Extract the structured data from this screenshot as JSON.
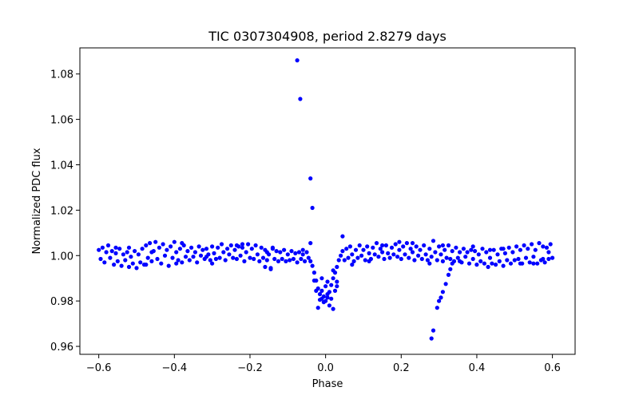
{
  "chart_data": {
    "type": "scatter",
    "title": "TIC 0307304908, period 2.8279 days",
    "xlabel": "Phase",
    "ylabel": "Normalized PDC flux",
    "xlim": [
      -0.65,
      0.66
    ],
    "ylim": [
      0.9565,
      1.0915
    ],
    "grid": false,
    "marker_color": "#0000ff",
    "xticks": [
      -0.6,
      -0.4,
      -0.2,
      0.0,
      0.2,
      0.4,
      0.6
    ],
    "xtick_labels": [
      "−0.6",
      "−0.4",
      "−0.2",
      "0.0",
      "0.2",
      "0.4",
      "0.6"
    ],
    "yticks": [
      0.96,
      0.98,
      1.0,
      1.02,
      1.04,
      1.06,
      1.08
    ],
    "ytick_labels": [
      "0.96",
      "0.98",
      "1.00",
      "1.02",
      "1.04",
      "1.06",
      "1.08"
    ],
    "series": [
      {
        "name": "flux",
        "points": [
          [
            -0.6,
            1.0025
          ],
          [
            -0.595,
            0.9985
          ],
          [
            -0.59,
            1.0035
          ],
          [
            -0.585,
            0.997
          ],
          [
            -0.58,
            1.0015
          ],
          [
            -0.575,
            1.0045
          ],
          [
            -0.57,
            0.999
          ],
          [
            -0.565,
            1.002
          ],
          [
            -0.56,
            0.996
          ],
          [
            -0.555,
            1.001
          ],
          [
            -0.55,
            0.9975
          ],
          [
            -0.545,
            1.003
          ],
          [
            -0.54,
            0.9955
          ],
          [
            -0.535,
            1.0005
          ],
          [
            -0.53,
            0.998
          ],
          [
            -0.525,
            1.0015
          ],
          [
            -0.52,
            0.995
          ],
          [
            -0.515,
            0.9995
          ],
          [
            -0.51,
            0.9965
          ],
          [
            -0.505,
            1.002
          ],
          [
            -0.5,
            0.9945
          ],
          [
            -0.495,
            1.0005
          ],
          [
            -0.49,
            0.997
          ],
          [
            -0.485,
            1.003
          ],
          [
            -0.48,
            0.996
          ],
          [
            -0.475,
            1.0045
          ],
          [
            -0.47,
            0.999
          ],
          [
            -0.465,
            1.0055
          ],
          [
            -0.46,
            0.9975
          ],
          [
            -0.455,
            1.002
          ],
          [
            -0.45,
            1.006
          ],
          [
            -0.445,
            0.9985
          ],
          [
            -0.44,
            1.0035
          ],
          [
            -0.435,
            0.9965
          ],
          [
            -0.43,
            1.005
          ],
          [
            -0.425,
            1.0
          ],
          [
            -0.42,
            1.0025
          ],
          [
            -0.415,
            0.9955
          ],
          [
            -0.41,
            1.004
          ],
          [
            -0.405,
            0.999
          ],
          [
            -0.4,
            1.006
          ],
          [
            -0.395,
            1.0015
          ],
          [
            -0.39,
            0.998
          ],
          [
            -0.385,
            1.003
          ],
          [
            -0.38,
            0.997
          ],
          [
            -0.375,
            1.0045
          ],
          [
            -0.37,
            0.9995
          ],
          [
            -0.365,
            1.002
          ],
          [
            -0.36,
            0.998
          ],
          [
            -0.355,
            1.0035
          ],
          [
            -0.35,
            0.9995
          ],
          [
            -0.345,
            1.0015
          ],
          [
            -0.34,
            0.997
          ],
          [
            -0.335,
            1.004
          ],
          [
            -0.33,
            1.0
          ],
          [
            -0.325,
            1.0025
          ],
          [
            -0.32,
            0.9985
          ],
          [
            -0.315,
            1.003
          ],
          [
            -0.31,
            1.0005
          ],
          [
            -0.305,
            0.998
          ],
          [
            -0.3,
            1.004
          ],
          [
            -0.295,
            1.001
          ],
          [
            -0.29,
            0.9985
          ],
          [
            -0.285,
            1.0035
          ],
          [
            -0.28,
            0.999
          ],
          [
            -0.275,
            1.005
          ],
          [
            -0.27,
            1.0015
          ],
          [
            -0.265,
            0.998
          ],
          [
            -0.26,
            1.003
          ],
          [
            -0.255,
            1.0005
          ],
          [
            -0.25,
            1.0045
          ],
          [
            -0.245,
            0.999
          ],
          [
            -0.24,
            1.0025
          ],
          [
            -0.235,
            0.9985
          ],
          [
            -0.23,
            1.004
          ],
          [
            -0.225,
            1.0
          ],
          [
            -0.22,
            1.0035
          ],
          [
            -0.215,
            0.9975
          ],
          [
            -0.21,
            1.0015
          ],
          [
            -0.205,
            1.005
          ],
          [
            -0.2,
            0.999
          ],
          [
            -0.195,
            1.003
          ],
          [
            -0.19,
            0.9985
          ],
          [
            -0.185,
            1.0045
          ],
          [
            -0.18,
            1.0005
          ],
          [
            -0.175,
            0.9975
          ],
          [
            -0.17,
            1.0035
          ],
          [
            -0.165,
            0.999
          ],
          [
            -0.16,
            1.0025
          ],
          [
            -0.155,
            0.998
          ],
          [
            -0.15,
            1.0005
          ],
          [
            -0.145,
            0.9945
          ],
          [
            -0.14,
            1.003
          ],
          [
            -0.135,
            0.9985
          ],
          [
            -0.13,
            1.002
          ],
          [
            -0.125,
            0.9975
          ],
          [
            -0.12,
            1.0015
          ],
          [
            -0.115,
            0.9985
          ],
          [
            -0.11,
            1.0025
          ],
          [
            -0.105,
            0.9975
          ],
          [
            -0.1,
            1.0005
          ],
          [
            -0.095,
            0.998
          ],
          [
            -0.09,
            1.002
          ],
          [
            -0.085,
            0.9985
          ],
          [
            -0.08,
            1.001
          ],
          [
            -0.075,
            0.997
          ],
          [
            -0.07,
            1.0015
          ],
          [
            -0.065,
            0.9985
          ],
          [
            -0.06,
            1.0005
          ],
          [
            -0.055,
            0.9975
          ],
          [
            -0.05,
            1.0015
          ],
          [
            -0.045,
            0.999
          ],
          [
            -0.04,
            0.9975
          ],
          [
            -0.035,
            0.9955
          ],
          [
            -0.03,
            0.9925
          ],
          [
            -0.025,
            0.989
          ],
          [
            -0.02,
            0.9855
          ],
          [
            -0.015,
            0.983
          ],
          [
            -0.01,
            0.981
          ],
          [
            -0.005,
            0.9795
          ],
          [
            0.0,
            0.98
          ],
          [
            0.005,
            0.9815
          ],
          [
            0.01,
            0.984
          ],
          [
            0.015,
            0.987
          ],
          [
            0.02,
            0.99
          ],
          [
            0.025,
            0.9925
          ],
          [
            0.03,
            0.995
          ],
          [
            0.035,
            0.998
          ],
          [
            0.04,
            1.0
          ],
          [
            0.045,
            1.002
          ],
          [
            0.05,
            0.998
          ],
          [
            0.055,
            1.003
          ],
          [
            0.06,
            0.999
          ],
          [
            0.065,
            1.004
          ],
          [
            0.07,
            1.0005
          ],
          [
            0.075,
            0.9975
          ],
          [
            0.08,
            1.0025
          ],
          [
            0.085,
            0.999
          ],
          [
            0.09,
            1.0045
          ],
          [
            0.095,
            1.0
          ],
          [
            0.1,
            1.0025
          ],
          [
            0.105,
            0.998
          ],
          [
            0.11,
            1.004
          ],
          [
            0.115,
            1.001
          ],
          [
            0.12,
            0.9985
          ],
          [
            0.125,
            1.0035
          ],
          [
            0.13,
            1.0005
          ],
          [
            0.135,
            1.0055
          ],
          [
            0.14,
            0.9995
          ],
          [
            0.145,
            1.003
          ],
          [
            0.15,
            1.0015
          ],
          [
            0.155,
            0.9985
          ],
          [
            0.16,
            1.0045
          ],
          [
            0.165,
            1.001
          ],
          [
            0.17,
            0.999
          ],
          [
            0.175,
            1.0035
          ],
          [
            0.18,
            1.0005
          ],
          [
            0.185,
            1.005
          ],
          [
            0.19,
            0.9995
          ],
          [
            0.195,
            1.0025
          ],
          [
            0.2,
            0.9985
          ],
          [
            0.205,
            1.004
          ],
          [
            0.21,
            1.0005
          ],
          [
            0.215,
            1.0055
          ],
          [
            0.22,
            0.999
          ],
          [
            0.225,
            1.003
          ],
          [
            0.23,
            1.0015
          ],
          [
            0.235,
            0.998
          ],
          [
            0.24,
            1.004
          ],
          [
            0.245,
            1.0
          ],
          [
            0.25,
            1.0025
          ],
          [
            0.255,
            0.9985
          ],
          [
            0.26,
            1.0045
          ],
          [
            0.265,
            1.0005
          ],
          [
            0.27,
            0.998
          ],
          [
            0.275,
            1.003
          ],
          [
            0.28,
            0.9995
          ],
          [
            0.285,
            1.0065
          ],
          [
            0.29,
            1.0015
          ],
          [
            0.295,
            0.998
          ],
          [
            0.3,
            1.004
          ],
          [
            0.305,
            1.0005
          ],
          [
            0.31,
            0.9975
          ],
          [
            0.315,
            1.0025
          ],
          [
            0.32,
            0.999
          ],
          [
            0.325,
            1.0045
          ],
          [
            0.33,
            0.9985
          ],
          [
            0.335,
            1.002
          ],
          [
            0.34,
            0.9975
          ],
          [
            0.345,
            1.0035
          ],
          [
            0.35,
            0.999
          ],
          [
            0.355,
            1.0015
          ],
          [
            0.36,
            0.997
          ],
          [
            0.365,
            1.003
          ],
          [
            0.37,
            0.9995
          ],
          [
            0.375,
            1.0015
          ],
          [
            0.38,
            0.9965
          ],
          [
            0.385,
            1.0025
          ],
          [
            0.39,
            0.9985
          ],
          [
            0.395,
            1.002
          ],
          [
            0.4,
            0.996
          ],
          [
            0.405,
            1.0005
          ],
          [
            0.41,
            0.9975
          ],
          [
            0.415,
            1.003
          ],
          [
            0.42,
            0.9965
          ],
          [
            0.425,
            1.0015
          ],
          [
            0.43,
            0.995
          ],
          [
            0.435,
            0.999
          ],
          [
            0.44,
            0.9965
          ],
          [
            0.445,
            1.0025
          ],
          [
            0.45,
            0.996
          ],
          [
            0.455,
            1.0005
          ],
          [
            0.46,
            0.9975
          ],
          [
            0.465,
            1.003
          ],
          [
            0.47,
            0.9955
          ],
          [
            0.475,
            1.001
          ],
          [
            0.48,
            0.998
          ],
          [
            0.485,
            1.0035
          ],
          [
            0.49,
            0.9965
          ],
          [
            0.495,
            1.0015
          ],
          [
            0.5,
            0.998
          ],
          [
            0.505,
            1.004
          ],
          [
            0.51,
            0.9985
          ],
          [
            0.515,
            1.0025
          ],
          [
            0.52,
            0.9965
          ],
          [
            0.525,
            1.0045
          ],
          [
            0.53,
            0.999
          ],
          [
            0.535,
            1.003
          ],
          [
            0.54,
            0.997
          ],
          [
            0.545,
            1.005
          ],
          [
            0.55,
            0.9995
          ],
          [
            0.555,
            1.0025
          ],
          [
            0.56,
            0.9965
          ],
          [
            0.565,
            1.0055
          ],
          [
            0.57,
            0.998
          ],
          [
            0.575,
            1.004
          ],
          [
            0.58,
            0.997
          ],
          [
            0.585,
            1.0035
          ],
          [
            0.59,
            0.9985
          ],
          [
            0.595,
            1.005
          ],
          [
            0.6,
            0.999
          ],
          [
            -0.52,
            1.0035
          ],
          [
            -0.46,
            1.0015
          ],
          [
            -0.38,
            1.0055
          ],
          [
            -0.3,
            0.9965
          ],
          [
            -0.22,
            1.005
          ],
          [
            -0.14,
            1.0035
          ],
          [
            -0.06,
            1.0025
          ],
          [
            0.07,
            0.996
          ],
          [
            0.15,
            1.0045
          ],
          [
            0.23,
            1.0055
          ],
          [
            0.31,
            1.0045
          ],
          [
            0.39,
            1.004
          ],
          [
            0.47,
            1.003
          ],
          [
            0.55,
            0.9965
          ],
          [
            0.59,
            1.0015
          ],
          [
            -0.555,
            1.0035
          ],
          [
            -0.475,
            0.996
          ],
          [
            -0.395,
            0.9965
          ],
          [
            -0.315,
            0.9995
          ],
          [
            -0.235,
            1.0045
          ],
          [
            -0.155,
            1.0015
          ],
          [
            0.115,
            0.9975
          ],
          [
            0.195,
            1.006
          ],
          [
            0.275,
            0.9965
          ],
          [
            0.355,
            0.9975
          ],
          [
            0.435,
            1.0025
          ],
          [
            0.515,
            0.9965
          ],
          [
            0.575,
            0.9985
          ],
          [
            -0.145,
            0.994
          ],
          [
            -0.16,
            0.995
          ],
          [
            -0.04,
            1.0055
          ],
          [
            -0.02,
            0.977
          ],
          [
            -0.015,
            0.9805
          ],
          [
            -0.01,
            0.9845
          ],
          [
            -0.005,
            0.982
          ],
          [
            0.0,
            0.9865
          ],
          [
            0.005,
            0.983
          ],
          [
            0.01,
            0.978
          ],
          [
            0.015,
            0.981
          ],
          [
            0.02,
            0.9765
          ],
          [
            0.025,
            0.9845
          ],
          [
            0.03,
            0.9885
          ],
          [
            -0.03,
            0.989
          ],
          [
            -0.025,
            0.9845
          ],
          [
            -0.01,
            0.99
          ],
          [
            0.005,
            0.9885
          ],
          [
            0.02,
            0.9935
          ],
          [
            0.03,
            0.9865
          ],
          [
            -0.075,
            1.086
          ],
          [
            -0.067,
            1.069
          ],
          [
            -0.04,
            1.034
          ],
          [
            -0.035,
            1.021
          ],
          [
            0.045,
            1.0085
          ],
          [
            0.28,
            0.9635
          ],
          [
            0.285,
            0.967
          ],
          [
            0.295,
            0.977
          ],
          [
            0.3,
            0.98
          ],
          [
            0.305,
            0.9815
          ],
          [
            0.31,
            0.984
          ],
          [
            0.318,
            0.9875
          ],
          [
            0.325,
            0.9915
          ],
          [
            0.33,
            0.994
          ],
          [
            0.335,
            0.9965
          ]
        ]
      }
    ]
  }
}
